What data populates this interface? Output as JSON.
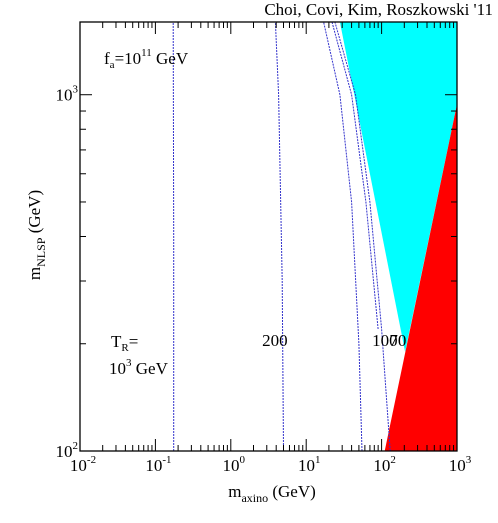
{
  "chart_data": {
    "type": "line",
    "title": "Choi, Covi, Kim, Roszkowski '11",
    "xlabel": {
      "main": "m",
      "sub": "axino",
      "unit": " (GeV)"
    },
    "ylabel": {
      "main": "m",
      "sub": "NLSP",
      "unit": " (GeV)"
    },
    "x_scale": "log",
    "y_scale": "log",
    "xlim": [
      0.01,
      1000
    ],
    "ylim": [
      100,
      1600
    ],
    "x_ticks": [
      {
        "v": 0.01,
        "base": "10",
        "exp": "-2"
      },
      {
        "v": 0.1,
        "base": "10",
        "exp": "-1"
      },
      {
        "v": 1,
        "base": "10",
        "exp": "0"
      },
      {
        "v": 10,
        "base": "10",
        "exp": "1"
      },
      {
        "v": 100,
        "base": "10",
        "exp": "2"
      },
      {
        "v": 1000,
        "base": "10",
        "exp": "3"
      }
    ],
    "y_ticks": [
      {
        "v": 100,
        "base": "10",
        "exp": "2"
      },
      {
        "v": 1000,
        "base": "10",
        "exp": "3"
      }
    ],
    "annotation_fa": {
      "main": "f",
      "sub": "a",
      "mid": "=10",
      "sup": "11",
      "tail": " GeV"
    },
    "annotation_tr": {
      "line1_main": "T",
      "line1_sub": "R",
      "line1_tail": "=",
      "line2_main": "10",
      "line2_sup": "3",
      "line2_tail": " GeV"
    },
    "series": [
      {
        "label": "10^3 GeV",
        "color": "#3333cc",
        "points": [
          [
            0.175,
            100
          ],
          [
            0.175,
            400
          ],
          [
            0.172,
            1600
          ]
        ]
      },
      {
        "label": "200",
        "color": "#3333cc",
        "points": [
          [
            5.0,
            100
          ],
          [
            4.8,
            300
          ],
          [
            4.3,
            1000
          ],
          [
            3.9,
            1600
          ]
        ]
      },
      {
        "label": "100",
        "color": "#3333cc",
        "points": [
          [
            55,
            100
          ],
          [
            50,
            200
          ],
          [
            40,
            500
          ],
          [
            28,
            1000
          ],
          [
            17,
            1600
          ]
        ]
      },
      {
        "label": "70",
        "color": "#3333cc",
        "points": [
          [
            130,
            100
          ],
          [
            100,
            220
          ],
          [
            70,
            500
          ],
          [
            45,
            1000
          ],
          [
            24,
            1600
          ]
        ]
      },
      {
        "label": "",
        "color": "#3333cc",
        "points": [
          [
            90,
            220
          ],
          [
            62,
            500
          ],
          [
            40,
            1000
          ],
          [
            22,
            1600
          ]
        ]
      }
    ],
    "curve_labels": [
      {
        "text": "200",
        "x": 2.6,
        "y": 205
      },
      {
        "text": "100",
        "x": 75,
        "y": 205
      },
      {
        "text": "70",
        "x": 127,
        "y": 205
      }
    ],
    "regions": [
      {
        "name": "cyan-region",
        "color": "#00ffff",
        "points": [
          [
            28,
            1600
          ],
          [
            1000,
            1600
          ],
          [
            1000,
            940
          ],
          [
            205,
            190
          ]
        ]
      },
      {
        "name": "red-region",
        "color": "#ff0000",
        "points": [
          [
            1000,
            940
          ],
          [
            1000,
            100
          ],
          [
            110,
            100
          ]
        ]
      }
    ]
  }
}
